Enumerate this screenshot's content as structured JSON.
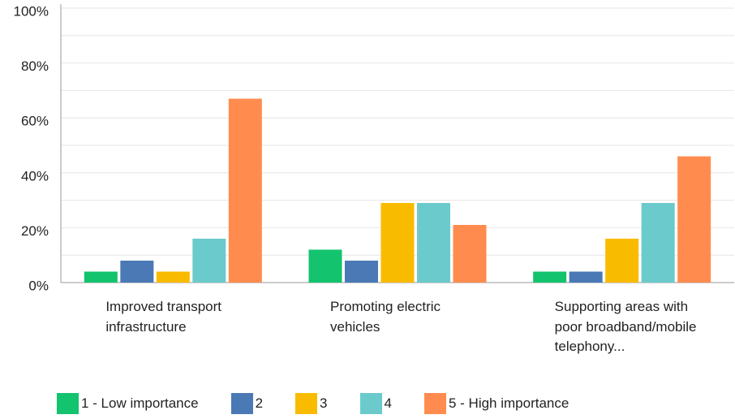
{
  "chart_data": {
    "type": "bar",
    "categories": [
      "Improved transport infrastructure",
      "Promoting electric vehicles",
      "Supporting areas with poor broadband/mobile telephony..."
    ],
    "series": [
      {
        "name": "1 - Low importance",
        "color": "#13c36e",
        "values": [
          4,
          12,
          4
        ]
      },
      {
        "name": "2",
        "color": "#4a79b5",
        "values": [
          8,
          8,
          4
        ]
      },
      {
        "name": "3",
        "color": "#f9bb00",
        "values": [
          4,
          29,
          16
        ]
      },
      {
        "name": "4",
        "color": "#6bcacb",
        "values": [
          16,
          29,
          29
        ]
      },
      {
        "name": "5 - High importance",
        "color": "#ff8c4e",
        "values": [
          67,
          21,
          46
        ]
      }
    ],
    "ylim": [
      0,
      100
    ],
    "yticks": [
      {
        "value": 0,
        "label": "0%"
      },
      {
        "value": 20,
        "label": "20%"
      },
      {
        "value": 40,
        "label": "40%"
      },
      {
        "value": 60,
        "label": "60%"
      },
      {
        "value": 80,
        "label": "80%"
      },
      {
        "value": 100,
        "label": "100%"
      }
    ],
    "minor_grid": [
      10,
      30,
      50,
      70,
      90
    ],
    "grid": true,
    "legend": "bottom"
  }
}
